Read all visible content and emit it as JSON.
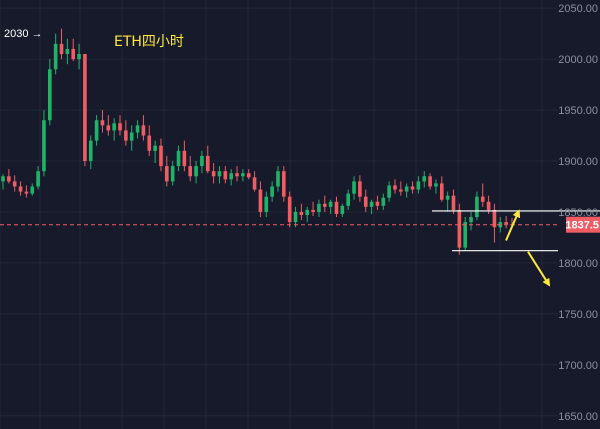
{
  "chart_data": {
    "type": "candlestick",
    "title": "ETH四小时",
    "ylim": [
      1637,
      2058
    ],
    "y_ticks": [
      "2050.00",
      "2000.00",
      "1950.00",
      "1900.00",
      "1850.00",
      "1800.00",
      "1750.00",
      "1700.00",
      "1650.00"
    ],
    "grid": true,
    "current_price": {
      "value": 1837.5,
      "label": "1837.5"
    },
    "high_label": {
      "value": 2030,
      "label": "2030 →"
    },
    "annotations": {
      "resistance_line": 1851,
      "support_line": 1812,
      "arrow_up": [
        1822,
        1849
      ],
      "arrow_down": [
        1811,
        1780
      ]
    },
    "candles": [
      [
        1880,
        1887,
        1872,
        1885
      ],
      [
        1885,
        1892,
        1878,
        1880
      ],
      [
        1880,
        1886,
        1870,
        1875
      ],
      [
        1875,
        1880,
        1866,
        1870
      ],
      [
        1870,
        1876,
        1864,
        1868
      ],
      [
        1868,
        1878,
        1866,
        1875
      ],
      [
        1875,
        1895,
        1872,
        1890
      ],
      [
        1890,
        1950,
        1885,
        1940
      ],
      [
        1940,
        2000,
        1935,
        1990
      ],
      [
        1990,
        2025,
        1985,
        2015
      ],
      [
        2015,
        2030,
        2000,
        2005
      ],
      [
        2005,
        2020,
        1995,
        2010
      ],
      [
        2010,
        2020,
        1998,
        2000
      ],
      [
        2000,
        2015,
        1990,
        2005
      ],
      [
        2005,
        2005,
        1895,
        1900
      ],
      [
        1900,
        1925,
        1892,
        1920
      ],
      [
        1920,
        1945,
        1915,
        1940
      ],
      [
        1940,
        1950,
        1928,
        1935
      ],
      [
        1935,
        1945,
        1925,
        1930
      ],
      [
        1930,
        1942,
        1920,
        1937
      ],
      [
        1937,
        1945,
        1925,
        1930
      ],
      [
        1930,
        1940,
        1915,
        1920
      ],
      [
        1920,
        1935,
        1910,
        1928
      ],
      [
        1928,
        1940,
        1922,
        1935
      ],
      [
        1935,
        1945,
        1920,
        1925
      ],
      [
        1925,
        1935,
        1905,
        1910
      ],
      [
        1910,
        1920,
        1898,
        1915
      ],
      [
        1915,
        1922,
        1890,
        1895
      ],
      [
        1895,
        1905,
        1875,
        1880
      ],
      [
        1880,
        1900,
        1876,
        1895
      ],
      [
        1895,
        1915,
        1890,
        1910
      ],
      [
        1910,
        1920,
        1890,
        1895
      ],
      [
        1895,
        1905,
        1880,
        1885
      ],
      [
        1885,
        1900,
        1878,
        1895
      ],
      [
        1895,
        1910,
        1888,
        1905
      ],
      [
        1905,
        1915,
        1888,
        1890
      ],
      [
        1890,
        1898,
        1878,
        1885
      ],
      [
        1885,
        1895,
        1878,
        1890
      ],
      [
        1890,
        1895,
        1878,
        1882
      ],
      [
        1882,
        1892,
        1876,
        1888
      ],
      [
        1888,
        1895,
        1880,
        1885
      ],
      [
        1885,
        1892,
        1880,
        1888
      ],
      [
        1888,
        1892,
        1882,
        1884
      ],
      [
        1884,
        1890,
        1870,
        1872
      ],
      [
        1872,
        1880,
        1845,
        1850
      ],
      [
        1850,
        1870,
        1845,
        1865
      ],
      [
        1865,
        1880,
        1860,
        1875
      ],
      [
        1875,
        1895,
        1870,
        1890
      ],
      [
        1890,
        1895,
        1860,
        1865
      ],
      [
        1865,
        1870,
        1835,
        1840
      ],
      [
        1840,
        1855,
        1835,
        1850
      ],
      [
        1850,
        1858,
        1842,
        1847
      ],
      [
        1847,
        1855,
        1840,
        1852
      ],
      [
        1852,
        1860,
        1846,
        1850
      ],
      [
        1850,
        1862,
        1845,
        1858
      ],
      [
        1858,
        1866,
        1850,
        1855
      ],
      [
        1855,
        1862,
        1848,
        1860
      ],
      [
        1860,
        1865,
        1845,
        1848
      ],
      [
        1848,
        1858,
        1845,
        1856
      ],
      [
        1856,
        1872,
        1852,
        1868
      ],
      [
        1868,
        1885,
        1862,
        1880
      ],
      [
        1880,
        1886,
        1860,
        1865
      ],
      [
        1865,
        1872,
        1850,
        1855
      ],
      [
        1855,
        1862,
        1848,
        1860
      ],
      [
        1860,
        1866,
        1852,
        1856
      ],
      [
        1856,
        1868,
        1852,
        1864
      ],
      [
        1864,
        1880,
        1860,
        1876
      ],
      [
        1876,
        1882,
        1868,
        1872
      ],
      [
        1872,
        1880,
        1866,
        1870
      ],
      [
        1870,
        1878,
        1864,
        1875
      ],
      [
        1875,
        1880,
        1868,
        1872
      ],
      [
        1872,
        1885,
        1868,
        1880
      ],
      [
        1880,
        1890,
        1874,
        1885
      ],
      [
        1885,
        1888,
        1872,
        1875
      ],
      [
        1875,
        1882,
        1868,
        1878
      ],
      [
        1878,
        1885,
        1860,
        1862
      ],
      [
        1862,
        1870,
        1850,
        1866
      ],
      [
        1866,
        1872,
        1848,
        1852
      ],
      [
        1852,
        1858,
        1808,
        1815
      ],
      [
        1815,
        1845,
        1812,
        1840
      ],
      [
        1840,
        1850,
        1832,
        1845
      ],
      [
        1845,
        1870,
        1842,
        1865
      ],
      [
        1865,
        1878,
        1855,
        1860
      ],
      [
        1860,
        1866,
        1848,
        1852
      ],
      [
        1852,
        1858,
        1820,
        1835
      ],
      [
        1835,
        1845,
        1830,
        1840
      ],
      [
        1840,
        1846,
        1834,
        1838
      ],
      [
        1838,
        1844,
        1834,
        1837.5
      ]
    ]
  }
}
